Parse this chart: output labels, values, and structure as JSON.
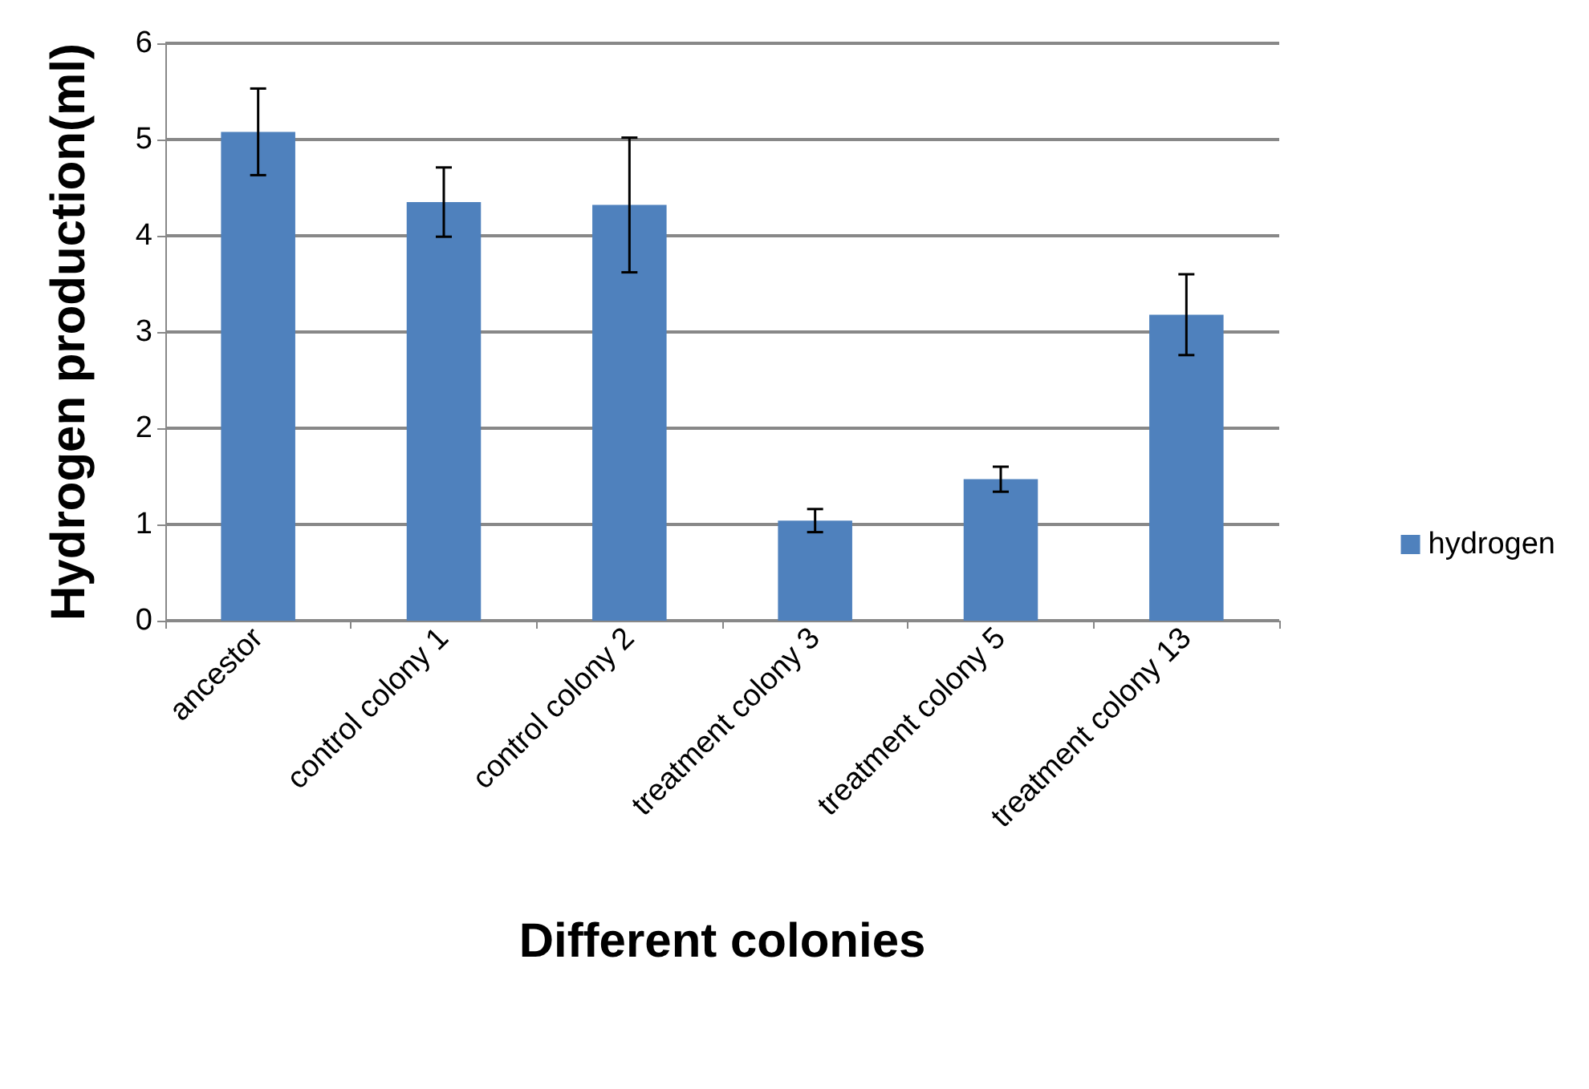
{
  "chart_data": {
    "type": "bar",
    "xlabel": "Different colonies",
    "ylabel": "Hydrogen production(ml)",
    "categories": [
      "ancestor",
      "control colony 1",
      "control colony 2",
      "treatment colony 3",
      "treatment colony 5",
      "treatment colony 13"
    ],
    "series": [
      {
        "name": "hydrogen",
        "color": "#4f81bd",
        "values": [
          5.08,
          4.35,
          4.32,
          1.04,
          1.47,
          3.18
        ],
        "errors": [
          0.45,
          0.36,
          0.7,
          0.12,
          0.13,
          0.42
        ]
      }
    ],
    "ylim": [
      0,
      6
    ],
    "yticks": [
      0,
      1,
      2,
      3,
      4,
      5,
      6
    ],
    "grid": "y",
    "legend": "right"
  }
}
